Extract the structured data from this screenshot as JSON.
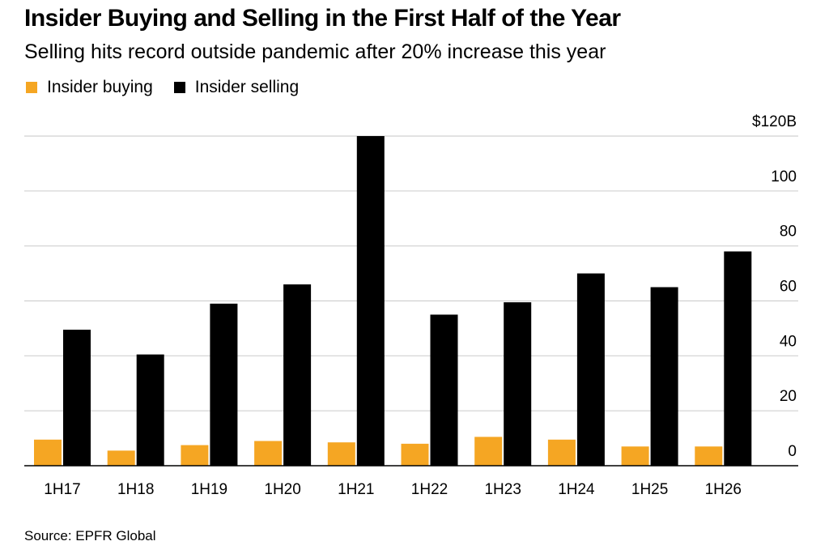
{
  "title": "Insider Buying and Selling in the First Half of the Year",
  "subtitle": "Selling hits record outside pandemic after 20% increase this year",
  "source": "Source: EPFR Global",
  "colors": {
    "buying": "#f5a623",
    "selling": "#000000",
    "grid": "#d0d0d0"
  },
  "legend": [
    {
      "label": "Insider buying",
      "color": "#f5a623"
    },
    {
      "label": "Insider selling",
      "color": "#000000"
    }
  ],
  "chart_data": {
    "type": "bar",
    "categories": [
      "1H17",
      "1H18",
      "1H19",
      "1H20",
      "1H21",
      "1H22",
      "1H23",
      "1H24",
      "1H25",
      "1H26"
    ],
    "series": [
      {
        "name": "Insider buying",
        "values": [
          9.5,
          5.5,
          7.5,
          9,
          8.5,
          8,
          10.5,
          9.5,
          7,
          7
        ]
      },
      {
        "name": "Insider selling",
        "values": [
          49.5,
          40.5,
          59,
          66,
          120,
          55,
          59.5,
          70,
          65,
          78
        ]
      }
    ],
    "ylim": [
      0,
      120
    ],
    "yticks": [
      0,
      20,
      40,
      60,
      80,
      100,
      120
    ],
    "ytick_labels": [
      "0",
      "20",
      "40",
      "60",
      "80",
      "100",
      "$120B"
    ],
    "y_axis_side": "right",
    "grid": true,
    "legend_position": "top-left"
  }
}
